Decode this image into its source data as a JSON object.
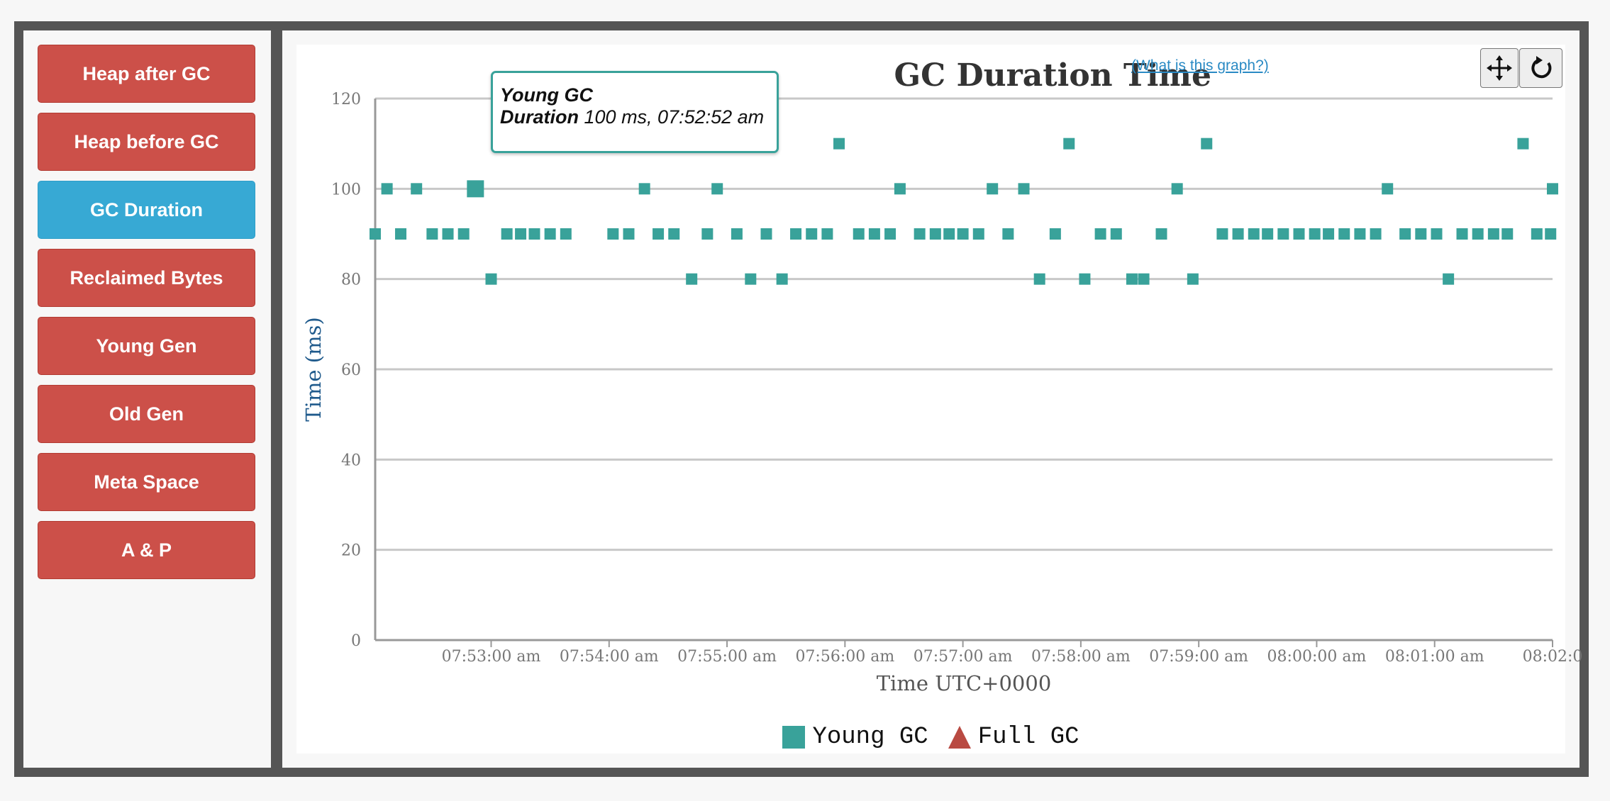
{
  "sidebar": {
    "items": [
      {
        "label": "Heap after GC",
        "active": false
      },
      {
        "label": "Heap before GC",
        "active": false
      },
      {
        "label": "GC Duration",
        "active": true
      },
      {
        "label": "Reclaimed Bytes",
        "active": false
      },
      {
        "label": "Young Gen",
        "active": false
      },
      {
        "label": "Old Gen",
        "active": false
      },
      {
        "label": "Meta Space",
        "active": false
      },
      {
        "label": "A & P",
        "active": false
      }
    ]
  },
  "chart": {
    "title": "GC Duration Time",
    "help_link": "(What is this graph?)",
    "tools": {
      "pan_icon": "move-arrows-icon",
      "reset_icon": "refresh-icon"
    },
    "tooltip": {
      "series": "Young GC",
      "label": "Duration",
      "value": "100 ms, 07:52:52 am"
    },
    "legend": [
      {
        "name": "Young GC",
        "shape": "square",
        "color": "#39a29a"
      },
      {
        "name": "Full GC",
        "shape": "triangle",
        "color": "#b94a42"
      }
    ]
  },
  "chart_data": {
    "type": "scatter",
    "title": "GC Duration Time",
    "xlabel": "Time UTC+0000",
    "ylabel": "Time (ms)",
    "ylim": [
      0,
      120
    ],
    "yticks": [
      "0",
      "20",
      "40",
      "60",
      "80",
      "100",
      "120"
    ],
    "xticks": [
      "07:53:00 am",
      "07:54:00 am",
      "07:55:00 am",
      "07:56:00 am",
      "07:57:00 am",
      "07:58:00 am",
      "07:59:00 am",
      "08:00:00 am",
      "08:01:00 am",
      "08:02:0"
    ],
    "x_start": "07:52:01 am",
    "x_end": "08:02:00 am",
    "grid": true,
    "legend": "bottom",
    "highlight": {
      "series": "Young GC",
      "x": "07:52:52 am",
      "y": 100
    },
    "series": [
      {
        "name": "Young GC",
        "color": "#39a29a",
        "marker": "square",
        "points": [
          [
            "07:52:01 am",
            90
          ],
          [
            "07:52:07 am",
            100
          ],
          [
            "07:52:14 am",
            90
          ],
          [
            "07:52:22 am",
            100
          ],
          [
            "07:52:30 am",
            90
          ],
          [
            "07:52:38 am",
            90
          ],
          [
            "07:52:46 am",
            90
          ],
          [
            "07:52:52 am",
            100
          ],
          [
            "07:53:00 am",
            80
          ],
          [
            "07:53:08 am",
            90
          ],
          [
            "07:53:15 am",
            90
          ],
          [
            "07:53:22 am",
            90
          ],
          [
            "07:53:30 am",
            90
          ],
          [
            "07:53:38 am",
            90
          ],
          [
            "07:54:02 am",
            90
          ],
          [
            "07:54:10 am",
            90
          ],
          [
            "07:54:18 am",
            100
          ],
          [
            "07:54:25 am",
            90
          ],
          [
            "07:54:33 am",
            90
          ],
          [
            "07:54:42 am",
            80
          ],
          [
            "07:54:50 am",
            90
          ],
          [
            "07:54:55 am",
            100
          ],
          [
            "07:55:05 am",
            90
          ],
          [
            "07:55:12 am",
            80
          ],
          [
            "07:55:20 am",
            90
          ],
          [
            "07:55:28 am",
            80
          ],
          [
            "07:55:35 am",
            90
          ],
          [
            "07:55:43 am",
            90
          ],
          [
            "07:55:51 am",
            90
          ],
          [
            "07:55:57 am",
            110
          ],
          [
            "07:56:07 am",
            90
          ],
          [
            "07:56:15 am",
            90
          ],
          [
            "07:56:23 am",
            90
          ],
          [
            "07:56:28 am",
            100
          ],
          [
            "07:56:38 am",
            90
          ],
          [
            "07:56:46 am",
            90
          ],
          [
            "07:56:53 am",
            90
          ],
          [
            "07:57:00 am",
            90
          ],
          [
            "07:57:08 am",
            90
          ],
          [
            "07:57:15 am",
            100
          ],
          [
            "07:57:23 am",
            90
          ],
          [
            "07:57:31 am",
            100
          ],
          [
            "07:57:39 am",
            80
          ],
          [
            "07:57:47 am",
            90
          ],
          [
            "07:57:54 am",
            110
          ],
          [
            "07:58:02 am",
            80
          ],
          [
            "07:58:10 am",
            90
          ],
          [
            "07:58:18 am",
            90
          ],
          [
            "07:58:26 am",
            80
          ],
          [
            "07:58:32 am",
            80
          ],
          [
            "07:58:41 am",
            90
          ],
          [
            "07:58:49 am",
            100
          ],
          [
            "07:58:57 am",
            80
          ],
          [
            "07:59:04 am",
            110
          ],
          [
            "07:59:12 am",
            90
          ],
          [
            "07:59:20 am",
            90
          ],
          [
            "07:59:28 am",
            90
          ],
          [
            "07:59:35 am",
            90
          ],
          [
            "07:59:43 am",
            90
          ],
          [
            "07:59:51 am",
            90
          ],
          [
            "07:59:59 am",
            90
          ],
          [
            "08:00:06 am",
            90
          ],
          [
            "08:00:14 am",
            90
          ],
          [
            "08:00:22 am",
            90
          ],
          [
            "08:00:30 am",
            90
          ],
          [
            "08:00:36 am",
            100
          ],
          [
            "08:00:45 am",
            90
          ],
          [
            "08:00:53 am",
            90
          ],
          [
            "08:01:01 am",
            90
          ],
          [
            "08:01:07 am",
            80
          ],
          [
            "08:01:14 am",
            90
          ],
          [
            "08:01:22 am",
            90
          ],
          [
            "08:01:30 am",
            90
          ],
          [
            "08:01:37 am",
            90
          ],
          [
            "08:01:45 am",
            110
          ],
          [
            "08:01:52 am",
            90
          ],
          [
            "08:01:59 am",
            90
          ],
          [
            "08:02:00 am",
            100
          ]
        ]
      },
      {
        "name": "Full GC",
        "color": "#b94a42",
        "marker": "triangle",
        "points": []
      }
    ]
  }
}
